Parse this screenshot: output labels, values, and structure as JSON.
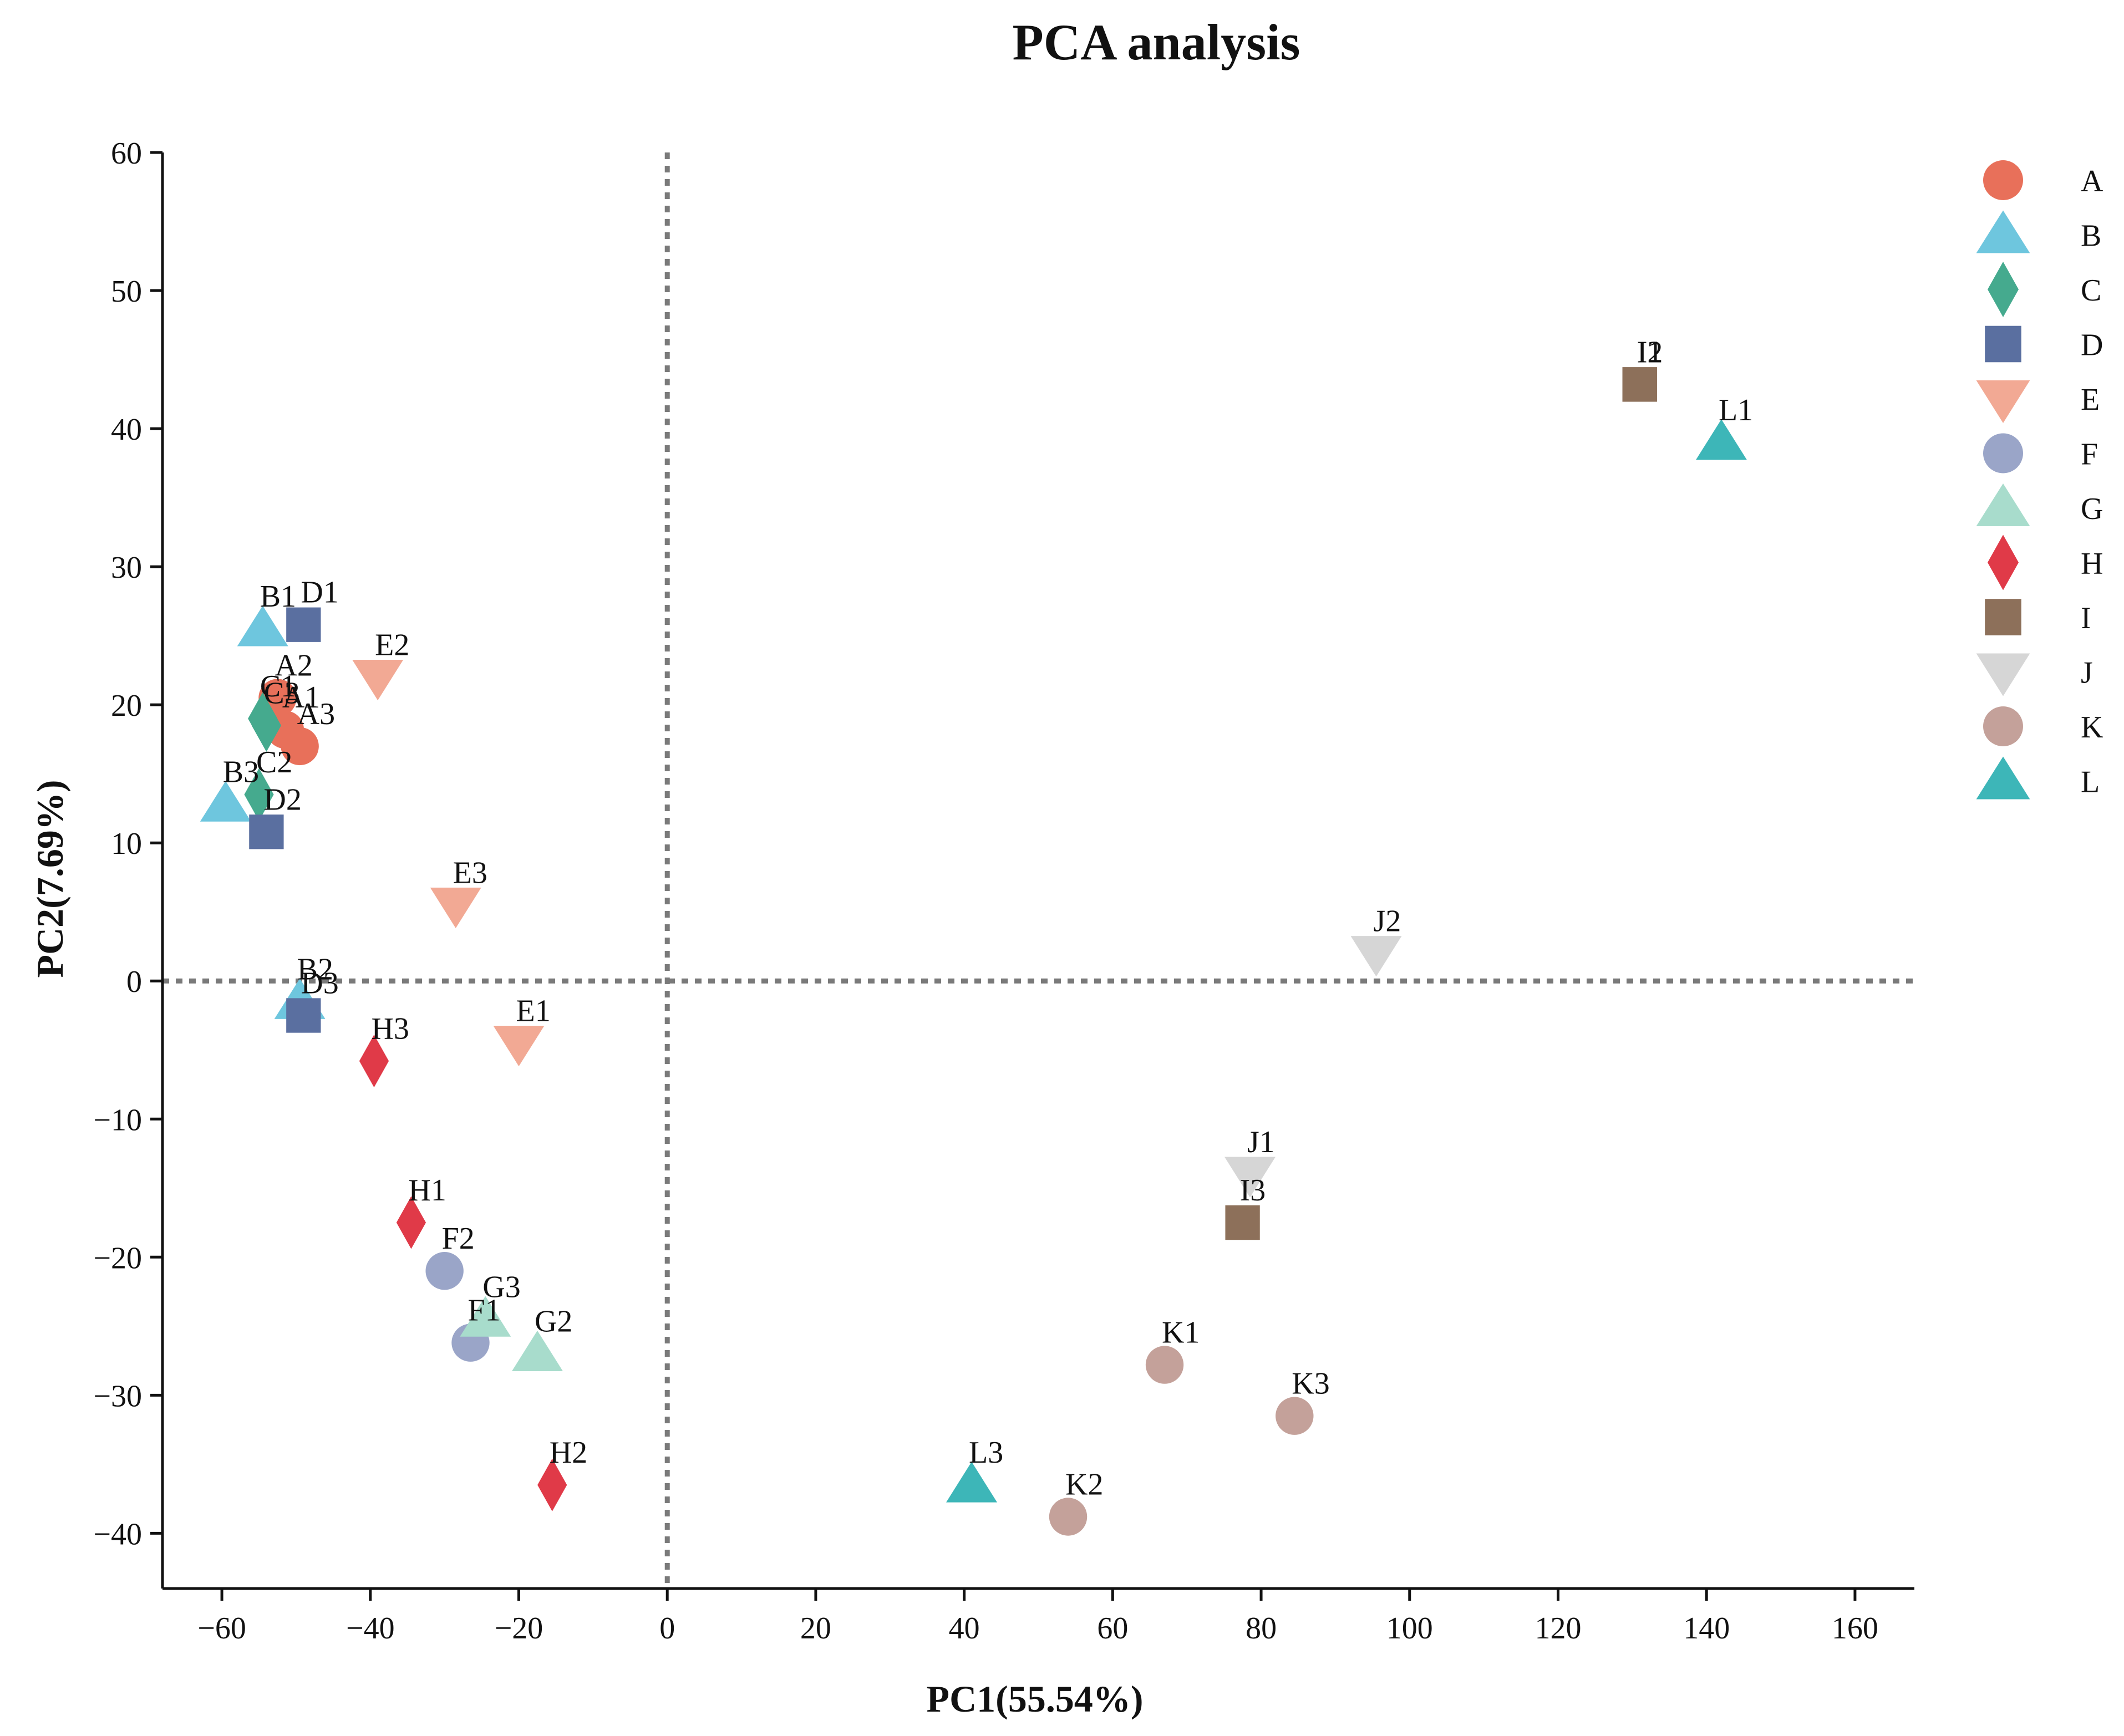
{
  "chart_data": {
    "type": "scatter",
    "title": "PCA analysis",
    "xlabel": "PC1(55.54%)",
    "ylabel": "PC2(7.69%)",
    "xlim": [
      -68,
      168
    ],
    "ylim": [
      -44,
      60
    ],
    "xticks": [
      -60,
      -40,
      -20,
      0,
      20,
      40,
      60,
      80,
      100,
      120,
      140,
      160
    ],
    "yticks": [
      -40,
      -30,
      -20,
      -10,
      0,
      10,
      20,
      30,
      40,
      50,
      60
    ],
    "reference_lines": {
      "x": 0,
      "y": 0,
      "style": "dotted"
    },
    "legend_position": "right",
    "series": [
      {
        "name": "A",
        "marker": "circle",
        "color": "#E8705A",
        "points": [
          {
            "label": "A1",
            "x": -51.5,
            "y": 18.2
          },
          {
            "label": "A2",
            "x": -52.5,
            "y": 20.5
          },
          {
            "label": "A3",
            "x": -49.5,
            "y": 17.0
          }
        ]
      },
      {
        "name": "B",
        "marker": "triangle-up",
        "color": "#6EC6DE",
        "points": [
          {
            "label": "B1",
            "x": -54.5,
            "y": 25.5
          },
          {
            "label": "B2",
            "x": -49.5,
            "y": -1.5
          },
          {
            "label": "B3",
            "x": -59.5,
            "y": 12.8
          }
        ]
      },
      {
        "name": "C",
        "marker": "diamond",
        "color": "#45AA8E",
        "points": [
          {
            "label": "C1",
            "x": -54.5,
            "y": 19.0
          },
          {
            "label": "C2",
            "x": -55.0,
            "y": 13.5
          },
          {
            "label": "C3",
            "x": -54.0,
            "y": 18.5
          }
        ]
      },
      {
        "name": "D",
        "marker": "square",
        "color": "#5A6FA0",
        "points": [
          {
            "label": "D1",
            "x": -49.0,
            "y": 25.8
          },
          {
            "label": "D2",
            "x": -54.0,
            "y": 10.8
          },
          {
            "label": "D3",
            "x": -49.0,
            "y": -2.5
          }
        ]
      },
      {
        "name": "E",
        "marker": "triangle-down",
        "color": "#F2A994",
        "points": [
          {
            "label": "E1",
            "x": -20.0,
            "y": -4.5
          },
          {
            "label": "E2",
            "x": -39.0,
            "y": 22.0
          },
          {
            "label": "E3",
            "x": -28.5,
            "y": 5.5
          }
        ]
      },
      {
        "name": "F",
        "marker": "circle",
        "color": "#9AA5C8",
        "points": [
          {
            "label": "F1",
            "x": -26.5,
            "y": -26.2
          },
          {
            "label": "F2",
            "x": -30.0,
            "y": -21.0
          }
        ]
      },
      {
        "name": "G",
        "marker": "triangle-up",
        "color": "#A8DCCC",
        "points": [
          {
            "label": "G2",
            "x": -17.5,
            "y": -27.0
          },
          {
            "label": "G3",
            "x": -24.5,
            "y": -24.5
          }
        ]
      },
      {
        "name": "H",
        "marker": "diamond",
        "color": "#E03A48",
        "points": [
          {
            "label": "H1",
            "x": -34.5,
            "y": -17.5
          },
          {
            "label": "H2",
            "x": -15.5,
            "y": -36.5
          },
          {
            "label": "H3",
            "x": -39.5,
            "y": -5.8
          }
        ]
      },
      {
        "name": "I",
        "marker": "square",
        "color": "#8D705A",
        "points": [
          {
            "label": "I1",
            "x": 131.0,
            "y": 43.2
          },
          {
            "label": "I2",
            "x": 131.0,
            "y": 43.2
          },
          {
            "label": "I3",
            "x": 77.5,
            "y": -17.5
          }
        ]
      },
      {
        "name": "J",
        "marker": "triangle-down",
        "color": "#D6D6D6",
        "points": [
          {
            "label": "J1",
            "x": 78.5,
            "y": -14.0
          },
          {
            "label": "J2",
            "x": 95.5,
            "y": 2.0
          }
        ]
      },
      {
        "name": "K",
        "marker": "circle",
        "color": "#C4A19A",
        "points": [
          {
            "label": "K1",
            "x": 67.0,
            "y": -27.8
          },
          {
            "label": "K2",
            "x": 54.0,
            "y": -38.8
          },
          {
            "label": "K3",
            "x": 84.5,
            "y": -31.5
          }
        ]
      },
      {
        "name": "L",
        "marker": "triangle-up",
        "color": "#3DB6B8",
        "points": [
          {
            "label": "L1",
            "x": 142.0,
            "y": 39.0
          },
          {
            "label": "L3",
            "x": 41.0,
            "y": -36.5
          }
        ]
      }
    ]
  }
}
